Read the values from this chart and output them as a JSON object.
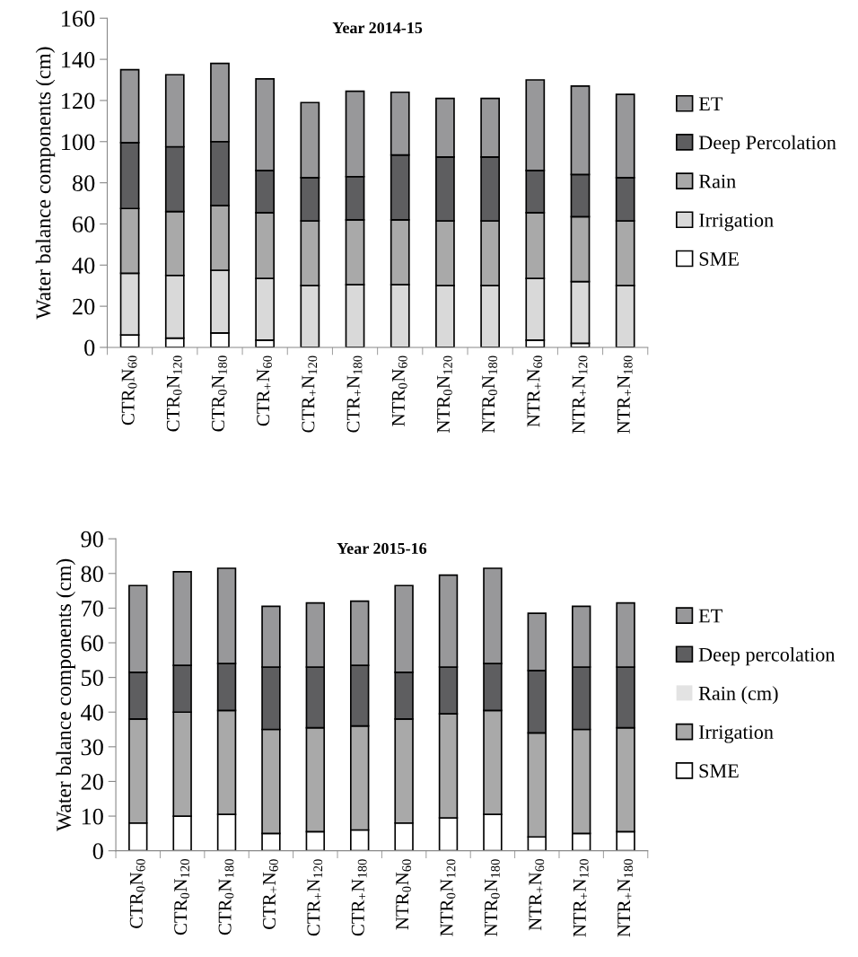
{
  "chart_data": [
    {
      "type": "bar",
      "stacked": true,
      "title": "Year 2014-15",
      "ylabel": "Water balance components (cm)",
      "categories": [
        "CTR$_{0}$N$_{60}$",
        "CTR$_{0}$N$_{120}$",
        "CTR$_{0}$N$_{180}$",
        "CTR$_{+}$N$_{60}$",
        "CTR$_{+}$N$_{120}$",
        "CTR$_{+}$N$_{180}$",
        "NTR$_{0}$N$_{60}$",
        "NTR$_{0}$N$_{120}$",
        "NTR$_{0}$N$_{180}$",
        "NTR$_{+}$N$_{60}$",
        "NTR$_{+}$N$_{120}$",
        "NTR$_{+}$N$_{180}$"
      ],
      "series": [
        {
          "name": "SME",
          "color": "#ffffff",
          "values": [
            6,
            4.5,
            7,
            3.5,
            0,
            0,
            0,
            0,
            0,
            3.5,
            2,
            0
          ]
        },
        {
          "name": "Irrigation",
          "color": "#d9d9d9",
          "values": [
            30,
            30.5,
            30.5,
            30,
            30,
            30.5,
            30.5,
            30,
            30,
            30,
            30,
            30
          ]
        },
        {
          "name": "Rain",
          "color": "#a9a9a9",
          "values": [
            31.5,
            31,
            31.5,
            32,
            31.5,
            31.5,
            31.5,
            31.5,
            31.5,
            32,
            31.5,
            31.5
          ]
        },
        {
          "name": "Deep Percolation",
          "color": "#5e5e60",
          "values": [
            32,
            31.5,
            31,
            20.5,
            21,
            21,
            31.5,
            31,
            31,
            20.5,
            20.5,
            21
          ]
        },
        {
          "name": "ET",
          "color": "#98989a",
          "values": [
            35.5,
            35,
            38,
            44.5,
            36.5,
            41.5,
            30.5,
            28.5,
            28.5,
            44,
            43,
            40.5
          ]
        }
      ],
      "ylim": [
        0,
        160
      ],
      "yticks": [
        0,
        20,
        40,
        60,
        80,
        100,
        120,
        140,
        160
      ],
      "grid": false,
      "legend": "right"
    },
    {
      "type": "bar",
      "stacked": true,
      "title": "Year 2015-16",
      "ylabel": "Water balance components (cm)",
      "categories": [
        "CTR$_{0}$N$_{60}$",
        "CTR$_{0}$N$_{120}$",
        "CTR$_{0}$N$_{180}$",
        "CTR$_{+}$N$_{60}$",
        "CTR$_{+}$N$_{120}$",
        "CTR$_{+}$N$_{180}$",
        "NTR$_{0}$N$_{60}$",
        "NTR$_{0}$N$_{120}$",
        "NTR$_{0}$N$_{180}$",
        "NTR$_{+}$N$_{60}$",
        "NTR$_{+}$N$_{120}$",
        "NTR$_{+}$N$_{180}$"
      ],
      "series": [
        {
          "name": "SME",
          "color": "#ffffff",
          "values": [
            8,
            10,
            10.5,
            5,
            5.5,
            6,
            8,
            9.5,
            10.5,
            4,
            5,
            5.5
          ]
        },
        {
          "name": "Irrigation",
          "color": "#a9a9a9",
          "values": [
            30,
            30,
            30,
            30,
            30,
            30,
            30,
            30,
            30,
            30,
            30,
            30
          ]
        },
        {
          "name": "Rain (cm)",
          "color": "#e3e3e3",
          "values": [
            0,
            0,
            0,
            0,
            0,
            0,
            0,
            0,
            0,
            0,
            0,
            0
          ]
        },
        {
          "name": "Deep percolation",
          "color": "#5e5e60",
          "values": [
            13.5,
            13.5,
            13.5,
            18,
            17.5,
            17.5,
            13.5,
            13.5,
            13.5,
            18,
            18,
            17.5
          ]
        },
        {
          "name": "ET",
          "color": "#98989a",
          "values": [
            25,
            27,
            27.5,
            17.5,
            18.5,
            18.5,
            25,
            26.5,
            27.5,
            16.5,
            17.5,
            18.5
          ]
        }
      ],
      "ylim": [
        0,
        90
      ],
      "yticks": [
        0,
        10,
        20,
        30,
        40,
        50,
        60,
        70,
        80,
        90
      ],
      "grid": false,
      "legend": "right"
    }
  ]
}
